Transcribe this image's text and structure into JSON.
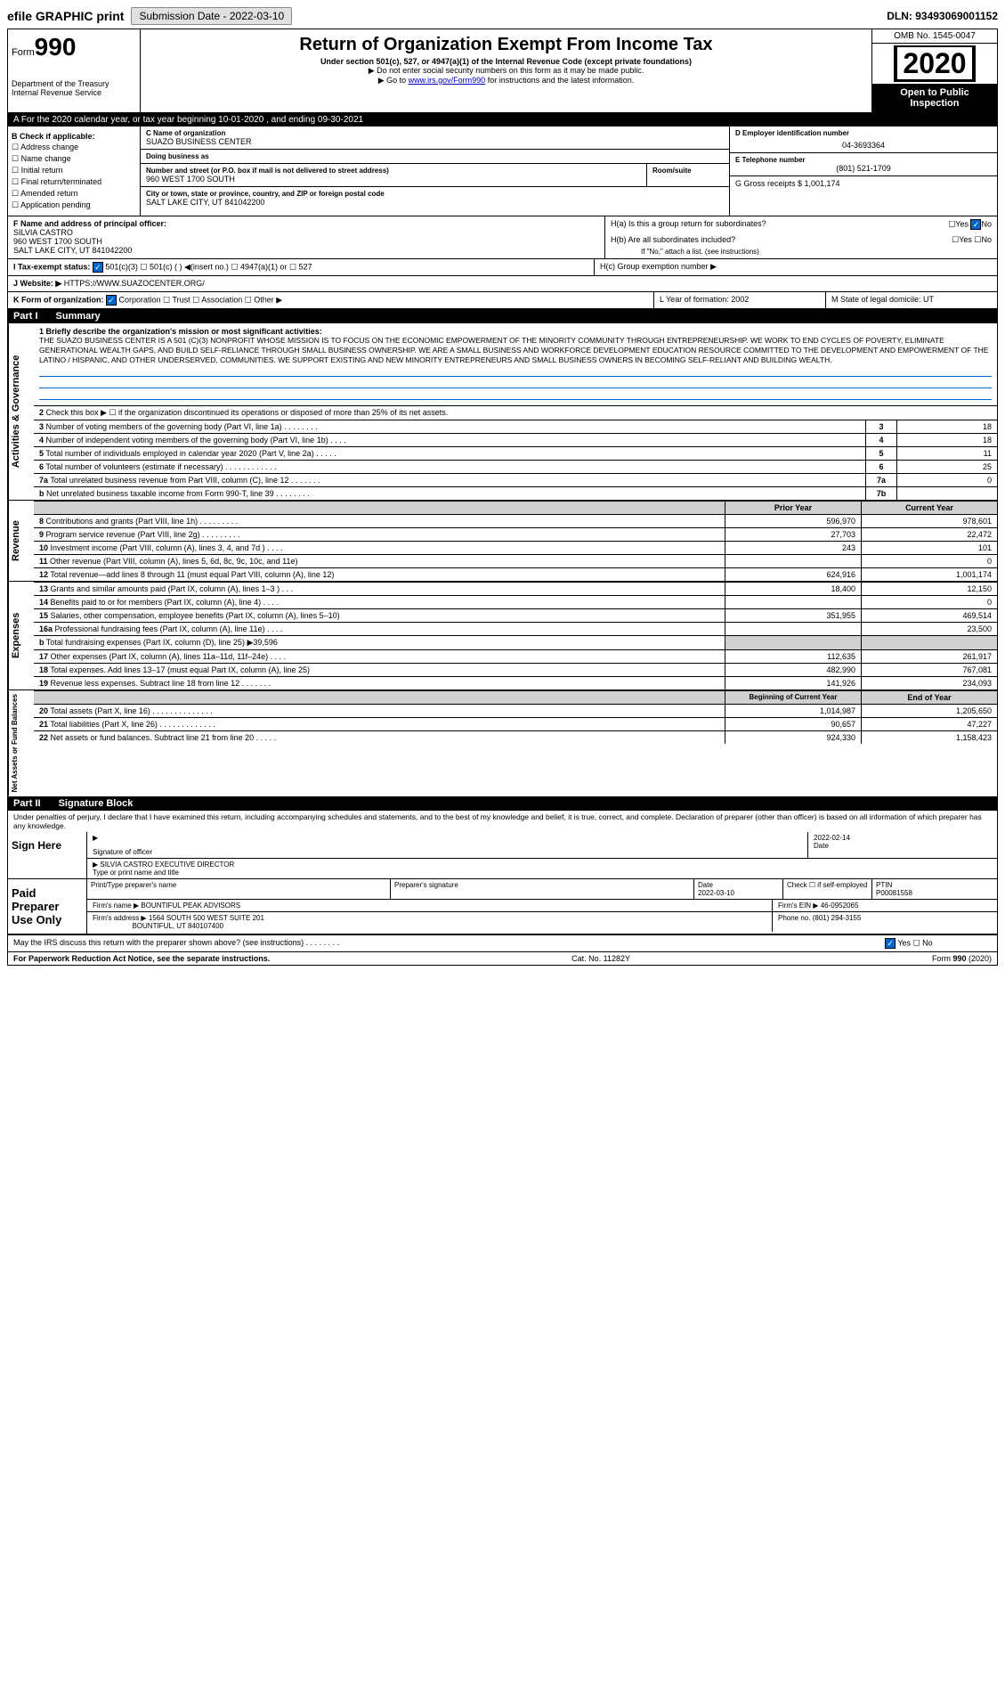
{
  "topbar": {
    "efile": "efile GRAPHIC print",
    "submission": "Submission Date - 2022-03-10",
    "dln": "DLN: 93493069001152"
  },
  "header": {
    "form_label": "Form",
    "form_num": "990",
    "dept": "Department of the Treasury\nInternal Revenue Service",
    "title": "Return of Organization Exempt From Income Tax",
    "subtitle": "Under section 501(c), 527, or 4947(a)(1) of the Internal Revenue Code (except private foundations)",
    "ssn_note": "▶ Do not enter social security numbers on this form as it may be made public.",
    "goto": "▶ Go to www.irs.gov/Form990 for instructions and the latest information.",
    "omb": "OMB No. 1545-0047",
    "year": "2020",
    "open": "Open to Public Inspection"
  },
  "tax_year": "For the 2020 calendar year, or tax year beginning 10-01-2020  , and ending 09-30-2021",
  "section_b": {
    "label": "B Check if applicable:",
    "items": [
      "Address change",
      "Name change",
      "Initial return",
      "Final return/terminated",
      "Amended return",
      "Application pending"
    ]
  },
  "section_c": {
    "name_label": "C Name of organization",
    "name": "SUAZO BUSINESS CENTER",
    "dba_label": "Doing business as",
    "addr_label": "Number and street (or P.O. box if mail is not delivered to street address)",
    "room_label": "Room/suite",
    "addr": "960 WEST 1700 SOUTH",
    "city_label": "City or town, state or province, country, and ZIP or foreign postal code",
    "city": "SALT LAKE CITY, UT  841042200"
  },
  "section_d": {
    "label": "D Employer identification number",
    "ein": "04-3693364"
  },
  "section_e": {
    "label": "E Telephone number",
    "phone": "(801) 521-1709"
  },
  "section_g": {
    "label": "G Gross receipts $ 1,001,174"
  },
  "section_f": {
    "label": "F Name and address of principal officer:",
    "name": "SILVIA CASTRO",
    "addr1": "960 WEST 1700 SOUTH",
    "addr2": "SALT LAKE CITY, UT  841042200"
  },
  "section_h": {
    "ha": "H(a)  Is this a group return for subordinates?",
    "hb": "H(b)  Are all subordinates included?",
    "hb_note": "If \"No,\" attach a list. (see instructions)",
    "hc": "H(c)  Group exemption number ▶"
  },
  "section_i": {
    "label": "I  Tax-exempt status:",
    "opts": "501(c)(3)     501(c) (  ) ◀(insert no.)     4947(a)(1) or     527"
  },
  "section_j": {
    "label": "J  Website: ▶",
    "url": "HTTPS://WWW.SUAZOCENTER.ORG/"
  },
  "section_k": {
    "label": "K Form of organization:",
    "opts": "Corporation    Trust    Association    Other ▶"
  },
  "section_l": {
    "label": "L Year of formation: 2002"
  },
  "section_m": {
    "label": "M State of legal domicile: UT"
  },
  "part1": {
    "title": "Part I",
    "subtitle": "Summary"
  },
  "mission": {
    "label": "1  Briefly describe the organization's mission or most significant activities:",
    "text": "THE SUAZO BUSINESS CENTER IS A 501 (C)(3) NONPROFIT WHOSE MISSION IS TO FOCUS ON THE ECONOMIC EMPOWERMENT OF THE MINORITY COMMUNITY THROUGH ENTREPRENEURSHIP. WE WORK TO END CYCLES OF POVERTY, ELIMINATE GENERATIONAL WEALTH GAPS, AND BUILD SELF-RELIANCE THROUGH SMALL BUSINESS OWNERSHIP. WE ARE A SMALL BUSINESS AND WORKFORCE DEVELOPMENT EDUCATION RESOURCE COMMITTED TO THE DEVELOPMENT AND EMPOWERMENT OF THE LATINO / HISPANIC, AND OTHER UNDERSERVED, COMMUNITIES. WE SUPPORT EXISTING AND NEW MINORITY ENTREPRENEURS AND SMALL BUSINESS OWNERS IN BECOMING SELF-RELIANT AND BUILDING WEALTH."
  },
  "gov_rows": [
    {
      "n": "2",
      "label": "Check this box ▶ ☐ if the organization discontinued its operations or disposed of more than 25% of its net assets."
    },
    {
      "n": "3",
      "label": "Number of voting members of the governing body (Part VI, line 1a)  .   .   .   .   .   .   .   .",
      "num": "3",
      "val": "18"
    },
    {
      "n": "4",
      "label": "Number of independent voting members of the governing body (Part VI, line 1b)  .   .   .   .",
      "num": "4",
      "val": "18"
    },
    {
      "n": "5",
      "label": "Total number of individuals employed in calendar year 2020 (Part V, line 2a)  .   .   .   .   .",
      "num": "5",
      "val": "11"
    },
    {
      "n": "6",
      "label": "Total number of volunteers (estimate if necessary)  .   .   .   .   .   .   .   .   .   .   .   .",
      "num": "6",
      "val": "25"
    },
    {
      "n": "7a",
      "label": "Total unrelated business revenue from Part VIII, column (C), line 12  .   .   .   .   .   .   .",
      "num": "7a",
      "val": "0"
    },
    {
      "n": "b",
      "label": "Net unrelated business taxable income from Form 990-T, line 39  .   .   .   .   .   .   .   .",
      "num": "7b",
      "val": ""
    }
  ],
  "fin_header": {
    "py": "Prior Year",
    "cy": "Current Year"
  },
  "revenue_rows": [
    {
      "n": "8",
      "label": "Contributions and grants (Part VIII, line 1h)  .   .   .   .   .   .   .   .   .",
      "py": "596,970",
      "cy": "978,601"
    },
    {
      "n": "9",
      "label": "Program service revenue (Part VIII, line 2g)  .   .   .   .   .   .   .   .   .",
      "py": "27,703",
      "cy": "22,472"
    },
    {
      "n": "10",
      "label": "Investment income (Part VIII, column (A), lines 3, 4, and 7d )  .   .   .   .",
      "py": "243",
      "cy": "101"
    },
    {
      "n": "11",
      "label": "Other revenue (Part VIII, column (A), lines 5, 6d, 8c, 9c, 10c, and 11e)",
      "py": "",
      "cy": "0"
    },
    {
      "n": "12",
      "label": "Total revenue—add lines 8 through 11 (must equal Part VIII, column (A), line 12)",
      "py": "624,916",
      "cy": "1,001,174"
    }
  ],
  "expense_rows": [
    {
      "n": "13",
      "label": "Grants and similar amounts paid (Part IX, column (A), lines 1–3 )  .   .   .",
      "py": "18,400",
      "cy": "12,150"
    },
    {
      "n": "14",
      "label": "Benefits paid to or for members (Part IX, column (A), line 4)  .   .   .   .",
      "py": "",
      "cy": "0"
    },
    {
      "n": "15",
      "label": "Salaries, other compensation, employee benefits (Part IX, column (A), lines 5–10)",
      "py": "351,955",
      "cy": "469,514"
    },
    {
      "n": "16a",
      "label": "Professional fundraising fees (Part IX, column (A), line 11e)  .   .   .   .",
      "py": "",
      "cy": "23,500"
    },
    {
      "n": "b",
      "label": "Total fundraising expenses (Part IX, column (D), line 25) ▶39,596",
      "py": "shade",
      "cy": "shade"
    },
    {
      "n": "17",
      "label": "Other expenses (Part IX, column (A), lines 11a–11d, 11f–24e)  .   .   .   .",
      "py": "112,635",
      "cy": "261,917"
    },
    {
      "n": "18",
      "label": "Total expenses. Add lines 13–17 (must equal Part IX, column (A), line 25)",
      "py": "482,990",
      "cy": "767,081"
    },
    {
      "n": "19",
      "label": "Revenue less expenses. Subtract line 18 from line 12  .   .   .   .   .   .   .",
      "py": "141,926",
      "cy": "234,093"
    }
  ],
  "na_header": {
    "py": "Beginning of Current Year",
    "cy": "End of Year"
  },
  "na_rows": [
    {
      "n": "20",
      "label": "Total assets (Part X, line 16)  .   .   .   .   .   .   .   .   .   .   .   .   .   .",
      "py": "1,014,987",
      "cy": "1,205,650"
    },
    {
      "n": "21",
      "label": "Total liabilities (Part X, line 26)  .   .   .   .   .   .   .   .   .   .   .   .   .",
      "py": "90,657",
      "cy": "47,227"
    },
    {
      "n": "22",
      "label": "Net assets or fund balances. Subtract line 21 from line 20  .   .   .   .   .",
      "py": "924,330",
      "cy": "1,158,423"
    }
  ],
  "part2": {
    "title": "Part II",
    "subtitle": "Signature Block"
  },
  "penalties": "Under penalties of perjury, I declare that I have examined this return, including accompanying schedules and statements, and to the best of my knowledge and belief, it is true, correct, and complete. Declaration of preparer (other than officer) is based on all information of which preparer has any knowledge.",
  "sign": {
    "label": "Sign Here",
    "sig_label": "Signature of officer",
    "date": "2022-02-14",
    "date_label": "Date",
    "name": "SILVIA CASTRO  EXECUTIVE DIRECTOR",
    "name_label": "Type or print name and title"
  },
  "prep": {
    "label": "Paid Preparer Use Only",
    "h1": "Print/Type preparer's name",
    "h2": "Preparer's signature",
    "h3": "Date",
    "h4": "Check ☐ if self-employed",
    "h5": "PTIN",
    "date": "2022-03-10",
    "ptin": "P00081558",
    "firm_label": "Firm's name    ▶",
    "firm": "BOUNTIFUL PEAK ADVISORS",
    "ein_label": "Firm's EIN ▶",
    "ein": "46-0952065",
    "addr_label": "Firm's address ▶",
    "addr1": "1564 SOUTH 500 WEST SUITE 201",
    "addr2": "BOUNTIFUL, UT  840107400",
    "phone_label": "Phone no.",
    "phone": "(801) 294-3155"
  },
  "discuss": "May the IRS discuss this return with the preparer shown above? (see instructions)  .   .   .   .   .   .   .   .",
  "footer": {
    "left": "For Paperwork Reduction Act Notice, see the separate instructions.",
    "mid": "Cat. No. 11282Y",
    "right": "Form 990 (2020)"
  },
  "vert_labels": {
    "gov": "Activities & Governance",
    "rev": "Revenue",
    "exp": "Expenses",
    "na": "Net Assets or Fund Balances"
  }
}
